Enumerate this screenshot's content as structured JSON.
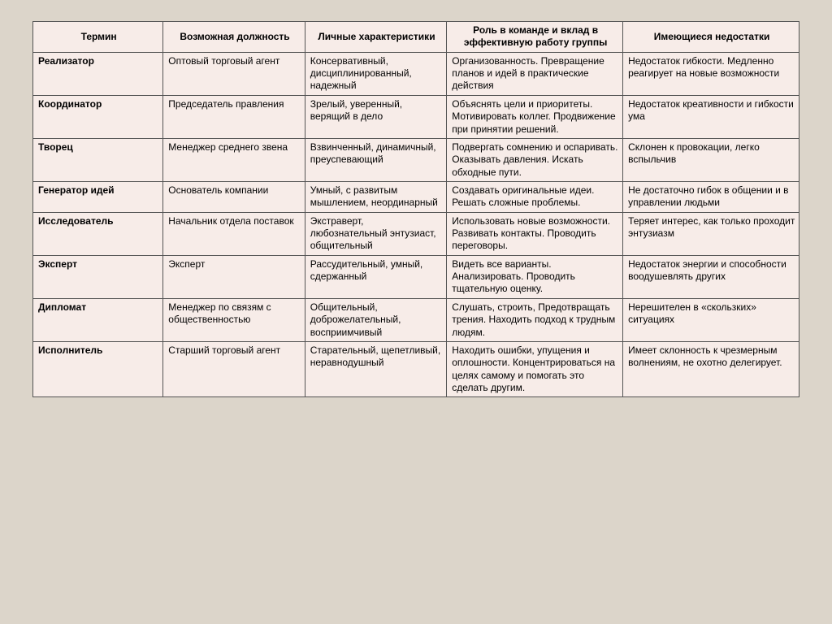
{
  "table": {
    "background_color": "#f7ece8",
    "page_background": "#dcd5ca",
    "border_color": "#545454",
    "font_family": "Arial",
    "font_size_pt": 9,
    "columns": [
      "Термин",
      "Возможная должность",
      "Личные характеристики",
      "Роль в команде и вклад в эффективную работу группы",
      "Имеющиеся недостатки"
    ],
    "rows": [
      {
        "term": "Реализатор",
        "position": "Оптовый торговый агент",
        "traits": "Консервативный, дисциплинированный, надежный",
        "role": "Организованность. Превращение планов и идей в практические действия",
        "weak": "Недостаток гибкости. Медленно реагирует на новые возможности"
      },
      {
        "term": "Координатор",
        "position": "Председатель правления",
        "traits": "Зрелый, уверенный, верящий в дело",
        "role": "Объяснять цели и приоритеты. Мотивировать коллег.  Продвижение при принятии решений.",
        "weak": "Недостаток креативности и гибкости ума"
      },
      {
        "term": "Творец",
        "position": "Менеджер среднего звена",
        "traits": "Взвинченный, динамичный, преуспевающий",
        "role": "Подвергать сомнению и оспаривать.  Оказывать давления. Искать обходные пути.",
        "weak": "Склонен к провокации, легко вспыльчив"
      },
      {
        "term": "Генератор идей",
        "position": "Основатель компании",
        "traits": "Умный,  с развитым мышлением, неординарный",
        "role": "Создавать оригинальные идеи. Решать сложные проблемы.",
        "weak": "Не достаточно гибок в общении и в управлении людьми"
      },
      {
        "term": "Исследователь",
        "position": "Начальник отдела поставок",
        "traits": "Экстраверт, любознательный энтузиаст, общительный",
        "role": "Использовать новые возможности. Развивать контакты. Проводить переговоры.",
        "weak": "Теряет интерес, как только проходит энтузиазм"
      },
      {
        "term": "Эксперт",
        "position": "Эксперт",
        "traits": "Рассудительный, умный, сдержанный",
        "role": "Видеть все варианты. Анализировать. Проводить тщательную оценку.",
        "weak": "Недостаток энергии и способности воодушевлять других"
      },
      {
        "term": "Дипломат",
        "position": "Менеджер по связям с общественностью",
        "traits": "Общительный, доброжелательный, восприимчивый",
        "role": "Слушать, строить, Предотвращать трения. Находить подход к трудным людям.",
        "weak": "Нерешителен в «скользких» ситуациях"
      },
      {
        "term": "Исполнитель",
        "position": "Старший торговый агент",
        "traits": "Старательный, щепетливый, неравнодушный",
        "role": "Находить ошибки, упущения и оплошности. Концентрироваться на целях самому и помогать это сделать другим.",
        "weak": "Имеет склонность к чрезмерным волнениям, не охотно делегирует."
      }
    ]
  }
}
